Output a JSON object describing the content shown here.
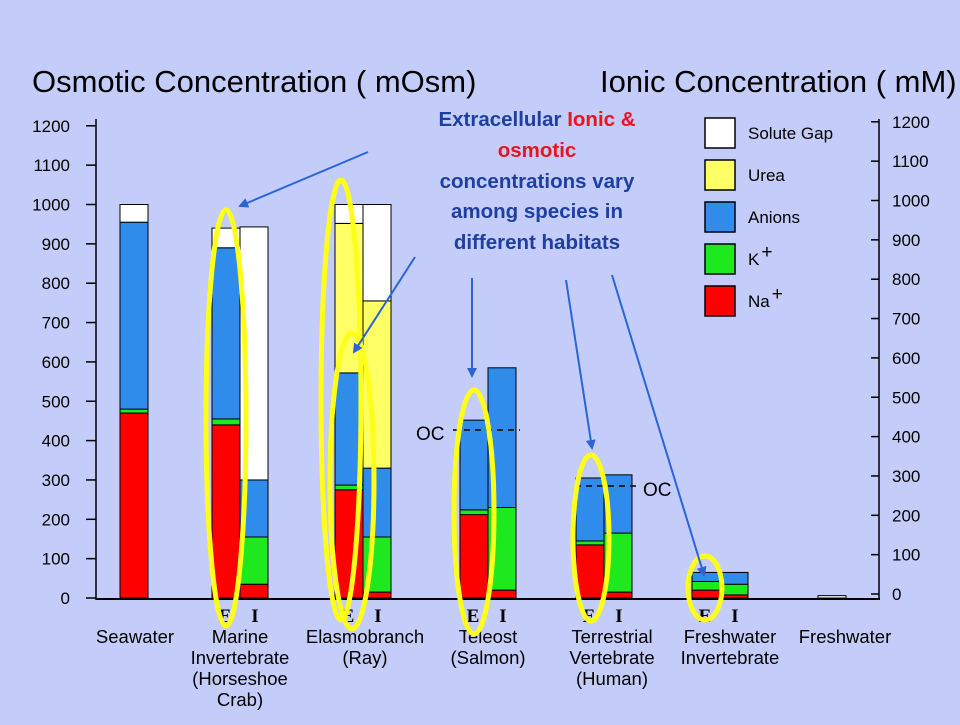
{
  "titles": {
    "left": "Osmotic Concentration ( mOsm)",
    "right": "Ionic Concentration ( mM)"
  },
  "annotation": {
    "parts": [
      {
        "text": "Extracellular ",
        "color": "#1d3fa0"
      },
      {
        "text": "Ionic &",
        "color": "#e8141e"
      },
      {
        "text": "osmotic",
        "color": "#e8141e"
      },
      {
        "text": "concentrations vary",
        "color": "#1d3fa0"
      },
      {
        "text": "among species in",
        "color": "#1d3fa0"
      },
      {
        "text": "different habitats",
        "color": "#1d3fa0"
      }
    ]
  },
  "oc_labels": [
    "OC",
    "OC"
  ],
  "colors": {
    "Solute Gap": "#ffffff",
    "Urea": "#ffff66",
    "Anions": "#2f8ceb",
    "K+": "#1ee81e",
    "Na+": "#ff0000",
    "highlight": "#ffff1a",
    "arrow": "#2a64d8"
  },
  "chart_data": {
    "type": "bar",
    "stacked": true,
    "ylim": [
      0,
      1200
    ],
    "left_ticks": [
      "0",
      "100",
      "200",
      "300",
      "400",
      "500",
      "600",
      "700",
      "800",
      "900",
      "1000",
      "1100",
      "1200"
    ],
    "right_ticks": [
      "0",
      "100",
      "200",
      "300",
      "400",
      "500",
      "600",
      "700",
      "800",
      "900",
      "1000",
      "1100",
      "1200"
    ],
    "legend": [
      {
        "label": "Solute Gap",
        "key": "Solute Gap"
      },
      {
        "label": "Urea",
        "key": "Urea"
      },
      {
        "label": "Anions",
        "key": "Anions"
      },
      {
        "label": "K",
        "sup": "+",
        "key": "K+"
      },
      {
        "label": "Na",
        "sup": "+",
        "key": "Na+"
      }
    ],
    "groups": [
      {
        "lines": [
          "Seawater"
        ],
        "e_label": "",
        "i_label": "",
        "bars": [
          {
            "id": "E",
            "segments": {
              "Na+": 470,
              "K+": 10,
              "Anions": 475,
              "Urea": 0,
              "Solute Gap": 45
            }
          }
        ]
      },
      {
        "lines": [
          "Marine",
          "Invertebrate",
          "(Horseshoe",
          "Crab)"
        ],
        "e_label": "E",
        "i_label": "I",
        "bars": [
          {
            "id": "E",
            "segments": {
              "Na+": 440,
              "K+": 15,
              "Anions": 435,
              "Urea": 0,
              "Solute Gap": 50
            }
          },
          {
            "id": "I",
            "segments": {
              "Na+": 35,
              "K+": 120,
              "Anions": 145,
              "Urea": 0,
              "Solute Gap": 643
            }
          }
        ]
      },
      {
        "lines": [
          "Elasmobranch",
          "(Ray)"
        ],
        "e_label": "E",
        "i_label": "I",
        "bars": [
          {
            "id": "E",
            "segments": {
              "Na+": 275,
              "K+": 12,
              "Anions": 285,
              "Urea": 380,
              "Solute Gap": 48
            }
          },
          {
            "id": "I",
            "segments": {
              "Na+": 15,
              "K+": 140,
              "Anions": 175,
              "Urea": 425,
              "Solute Gap": 245
            }
          }
        ]
      },
      {
        "lines": [
          "Teleost",
          "(Salmon)"
        ],
        "e_label": "E",
        "i_label": "I",
        "bars": [
          {
            "id": "E",
            "segments": {
              "Na+": 212,
              "K+": 12,
              "Anions": 228,
              "Urea": 0,
              "Solute Gap": 0
            }
          },
          {
            "id": "I",
            "segments": {
              "Na+": 20,
              "K+": 210,
              "Anions": 355,
              "Urea": 0,
              "Solute Gap": 0
            }
          }
        ]
      },
      {
        "lines": [
          "Terrestrial",
          "Vertebrate",
          "(Human)"
        ],
        "e_label": "E",
        "i_label": "I",
        "bars": [
          {
            "id": "E",
            "segments": {
              "Na+": 135,
              "K+": 10,
              "Anions": 160,
              "Urea": 0,
              "Solute Gap": 0
            }
          },
          {
            "id": "I",
            "segments": {
              "Na+": 15,
              "K+": 150,
              "Anions": 148,
              "Urea": 0,
              "Solute Gap": 0
            }
          }
        ]
      },
      {
        "lines": [
          "Freshwater",
          "Invertebrate"
        ],
        "e_label": "E",
        "i_label": "I",
        "bars": [
          {
            "id": "E",
            "segments": {
              "Na+": 20,
              "K+": 22,
              "Anions": 23,
              "Urea": 0,
              "Solute Gap": 0
            }
          },
          {
            "id": "I",
            "segments": {
              "Na+": 8,
              "K+": 27,
              "Anions": 30,
              "Urea": 0,
              "Solute Gap": 0
            }
          }
        ]
      },
      {
        "lines": [
          "Freshwater"
        ],
        "e_label": "",
        "i_label": "",
        "bars": [
          {
            "id": "E",
            "segments": {
              "Na+": 0,
              "K+": 0,
              "Anions": 0,
              "Urea": 0,
              "Solute Gap": 6
            }
          }
        ]
      }
    ]
  }
}
